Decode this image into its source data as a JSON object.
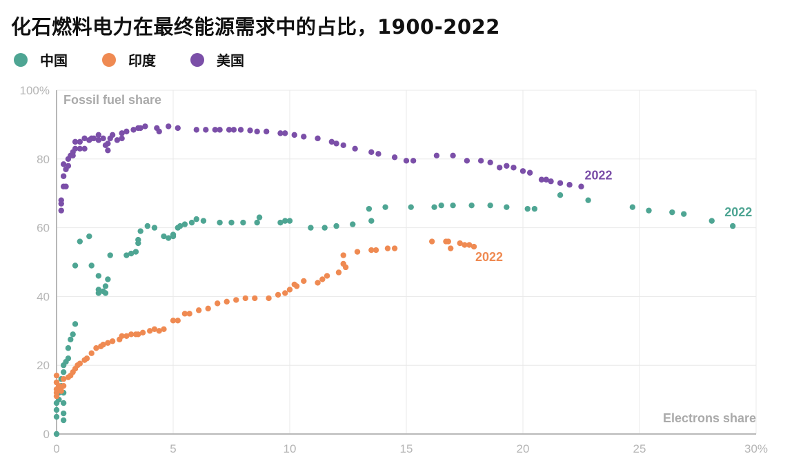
{
  "chart_data": {
    "type": "scatter",
    "title": "化石燃料电力在最终能源需求中的占比，1900-2022",
    "xlabel": "Electrons share",
    "ylabel": "Fossil fuel share",
    "xlim": [
      0,
      30
    ],
    "ylim": [
      0,
      100
    ],
    "xticks": [
      "0",
      "5",
      "10",
      "15",
      "20",
      "25",
      "30%"
    ],
    "yticks": [
      "0",
      "20",
      "40",
      "60",
      "80",
      "100%"
    ],
    "xtick_values": [
      0,
      5,
      10,
      15,
      20,
      25,
      30
    ],
    "ytick_values": [
      0,
      20,
      40,
      60,
      80,
      100
    ],
    "grid": true,
    "legend_position": "top-left",
    "series": [
      {
        "name": "中国",
        "color": "#4ea593",
        "end_label": "2022",
        "points": [
          [
            0,
            0
          ],
          [
            0,
            5
          ],
          [
            0,
            7
          ],
          [
            0,
            9
          ],
          [
            0.1,
            10
          ],
          [
            0.1,
            12
          ],
          [
            0.2,
            14
          ],
          [
            0.2,
            16
          ],
          [
            0.3,
            18
          ],
          [
            0.3,
            20
          ],
          [
            0.4,
            21
          ],
          [
            0.5,
            22
          ],
          [
            0.3,
            12
          ],
          [
            0.3,
            9
          ],
          [
            0.3,
            6
          ],
          [
            0.3,
            4
          ],
          [
            0.5,
            25
          ],
          [
            0.6,
            27.5
          ],
          [
            0.7,
            29
          ],
          [
            0.8,
            32
          ],
          [
            0.8,
            49
          ],
          [
            1.0,
            56
          ],
          [
            1.4,
            57.5
          ],
          [
            1.5,
            49
          ],
          [
            1.8,
            46
          ],
          [
            1.8,
            42
          ],
          [
            1.8,
            41
          ],
          [
            2.0,
            41.5
          ],
          [
            2.1,
            41
          ],
          [
            2.1,
            43
          ],
          [
            2.2,
            45
          ],
          [
            2.3,
            52
          ],
          [
            3.0,
            52
          ],
          [
            3.2,
            52.5
          ],
          [
            3.4,
            53
          ],
          [
            3.5,
            55.5
          ],
          [
            3.5,
            56.5
          ],
          [
            3.6,
            59
          ],
          [
            3.9,
            60.5
          ],
          [
            4.2,
            60
          ],
          [
            4.6,
            57.5
          ],
          [
            4.8,
            57
          ],
          [
            5.0,
            57.5
          ],
          [
            5.0,
            58
          ],
          [
            5.2,
            60
          ],
          [
            5.3,
            60.5
          ],
          [
            5.5,
            61
          ],
          [
            5.8,
            61.5
          ],
          [
            6.0,
            62.5
          ],
          [
            6.3,
            62
          ],
          [
            7.0,
            61.5
          ],
          [
            7.5,
            61.5
          ],
          [
            8.0,
            61.5
          ],
          [
            8.6,
            61.5
          ],
          [
            8.7,
            63
          ],
          [
            9.6,
            61.5
          ],
          [
            9.8,
            62
          ],
          [
            10.0,
            62
          ],
          [
            10.9,
            60
          ],
          [
            11.5,
            60
          ],
          [
            12.0,
            60.5
          ],
          [
            12.7,
            61
          ],
          [
            13.4,
            65.5
          ],
          [
            13.5,
            62
          ],
          [
            14.1,
            66
          ],
          [
            15.2,
            66
          ],
          [
            16.2,
            66
          ],
          [
            16.5,
            66.5
          ],
          [
            17.0,
            66.5
          ],
          [
            17.8,
            66.5
          ],
          [
            18.6,
            66.5
          ],
          [
            19.3,
            66
          ],
          [
            20.2,
            65.5
          ],
          [
            20.5,
            65.5
          ],
          [
            21.6,
            69.5
          ],
          [
            22.8,
            68
          ],
          [
            24.7,
            66
          ],
          [
            25.4,
            65
          ],
          [
            26.4,
            64.5
          ],
          [
            26.9,
            64
          ],
          [
            28.1,
            62
          ],
          [
            29.0,
            60.5
          ]
        ]
      },
      {
        "name": "印度",
        "color": "#ef8a52",
        "end_label": "2022",
        "points": [
          [
            0,
            17
          ],
          [
            0,
            15
          ],
          [
            0,
            13
          ],
          [
            0,
            12
          ],
          [
            0,
            11
          ],
          [
            0.1,
            14
          ],
          [
            0.2,
            13.5
          ],
          [
            0.2,
            12.5
          ],
          [
            0.3,
            14
          ],
          [
            0.3,
            16
          ],
          [
            0.5,
            16.5
          ],
          [
            0.6,
            17
          ],
          [
            0.7,
            18
          ],
          [
            0.8,
            19
          ],
          [
            0.9,
            20
          ],
          [
            1.0,
            20.5
          ],
          [
            1.2,
            21.5
          ],
          [
            1.3,
            22
          ],
          [
            1.5,
            23.5
          ],
          [
            1.7,
            25
          ],
          [
            1.9,
            25.5
          ],
          [
            2.0,
            26
          ],
          [
            2.2,
            26.5
          ],
          [
            2.4,
            27
          ],
          [
            2.7,
            27.5
          ],
          [
            2.8,
            28.5
          ],
          [
            3.0,
            28.5
          ],
          [
            3.2,
            29
          ],
          [
            3.4,
            29
          ],
          [
            3.5,
            29
          ],
          [
            3.7,
            29.5
          ],
          [
            4.0,
            30
          ],
          [
            4.2,
            30.5
          ],
          [
            4.4,
            30
          ],
          [
            4.6,
            30.5
          ],
          [
            5.0,
            33
          ],
          [
            5.2,
            33
          ],
          [
            5.5,
            35
          ],
          [
            5.7,
            35
          ],
          [
            6.1,
            36
          ],
          [
            6.5,
            36.5
          ],
          [
            6.9,
            38
          ],
          [
            7.3,
            38.5
          ],
          [
            7.7,
            39
          ],
          [
            8.1,
            39.5
          ],
          [
            8.5,
            39.5
          ],
          [
            9.1,
            39.5
          ],
          [
            9.5,
            40.5
          ],
          [
            9.8,
            41
          ],
          [
            10.0,
            42
          ],
          [
            10.2,
            43.5
          ],
          [
            10.3,
            43
          ],
          [
            10.6,
            44.5
          ],
          [
            11.2,
            44
          ],
          [
            11.4,
            45
          ],
          [
            11.6,
            46
          ],
          [
            12.1,
            47
          ],
          [
            12.3,
            49.5
          ],
          [
            12.4,
            48.5
          ],
          [
            12.3,
            52
          ],
          [
            12.9,
            53
          ],
          [
            13.5,
            53.5
          ],
          [
            13.7,
            53.5
          ],
          [
            14.2,
            54
          ],
          [
            14.5,
            54
          ],
          [
            16.1,
            56
          ],
          [
            16.7,
            56
          ],
          [
            16.8,
            56
          ],
          [
            16.9,
            54
          ],
          [
            17.3,
            55.5
          ],
          [
            17.5,
            55
          ],
          [
            17.7,
            55
          ],
          [
            17.9,
            54.5
          ]
        ]
      },
      {
        "name": "美国",
        "color": "#7b4fa8",
        "end_label": "2022",
        "points": [
          [
            0.2,
            65
          ],
          [
            0.2,
            67
          ],
          [
            0.2,
            68
          ],
          [
            0.3,
            72
          ],
          [
            0.4,
            72
          ],
          [
            0.3,
            75
          ],
          [
            0.4,
            77
          ],
          [
            0.3,
            78.5
          ],
          [
            0.5,
            78
          ],
          [
            0.5,
            80
          ],
          [
            0.6,
            81
          ],
          [
            0.7,
            82
          ],
          [
            0.7,
            81
          ],
          [
            0.8,
            83
          ],
          [
            0.8,
            85
          ],
          [
            1.0,
            83
          ],
          [
            1.0,
            85
          ],
          [
            1.2,
            83
          ],
          [
            1.2,
            86
          ],
          [
            1.4,
            85.5
          ],
          [
            1.5,
            86
          ],
          [
            1.6,
            86
          ],
          [
            1.8,
            87
          ],
          [
            1.8,
            85.5
          ],
          [
            2.0,
            86
          ],
          [
            2.1,
            84
          ],
          [
            2.2,
            82.5
          ],
          [
            2.2,
            84.5
          ],
          [
            2.3,
            86
          ],
          [
            2.4,
            87
          ],
          [
            2.6,
            85.5
          ],
          [
            2.8,
            86
          ],
          [
            2.8,
            87.5
          ],
          [
            3.0,
            88
          ],
          [
            3.3,
            88.5
          ],
          [
            3.5,
            89
          ],
          [
            3.6,
            89
          ],
          [
            3.8,
            89.5
          ],
          [
            4.3,
            89
          ],
          [
            4.4,
            88
          ],
          [
            4.8,
            89.5
          ],
          [
            5.2,
            89
          ],
          [
            6.0,
            88.5
          ],
          [
            6.4,
            88.5
          ],
          [
            6.8,
            88.5
          ],
          [
            7.0,
            88.5
          ],
          [
            7.4,
            88.5
          ],
          [
            7.6,
            88.5
          ],
          [
            7.9,
            88.5
          ],
          [
            8.3,
            88.3
          ],
          [
            8.6,
            88
          ],
          [
            9.0,
            88
          ],
          [
            9.6,
            87.5
          ],
          [
            9.8,
            87.5
          ],
          [
            10.2,
            87
          ],
          [
            10.6,
            86.5
          ],
          [
            11.2,
            86
          ],
          [
            11.8,
            85
          ],
          [
            12.0,
            84.5
          ],
          [
            12.3,
            84
          ],
          [
            12.8,
            83
          ],
          [
            13.5,
            82
          ],
          [
            13.8,
            81.5
          ],
          [
            14.5,
            80.5
          ],
          [
            15.0,
            79.5
          ],
          [
            15.3,
            79.5
          ],
          [
            16.3,
            81
          ],
          [
            17.0,
            81
          ],
          [
            17.6,
            79.5
          ],
          [
            18.2,
            79.5
          ],
          [
            18.6,
            79
          ],
          [
            19.0,
            77.5
          ],
          [
            19.3,
            78
          ],
          [
            19.6,
            77.5
          ],
          [
            20.0,
            76.5
          ],
          [
            20.3,
            76
          ],
          [
            20.8,
            74
          ],
          [
            21.0,
            74
          ],
          [
            21.2,
            73.5
          ],
          [
            21.6,
            73
          ],
          [
            22.0,
            72.5
          ],
          [
            22.5,
            72
          ]
        ]
      }
    ]
  }
}
